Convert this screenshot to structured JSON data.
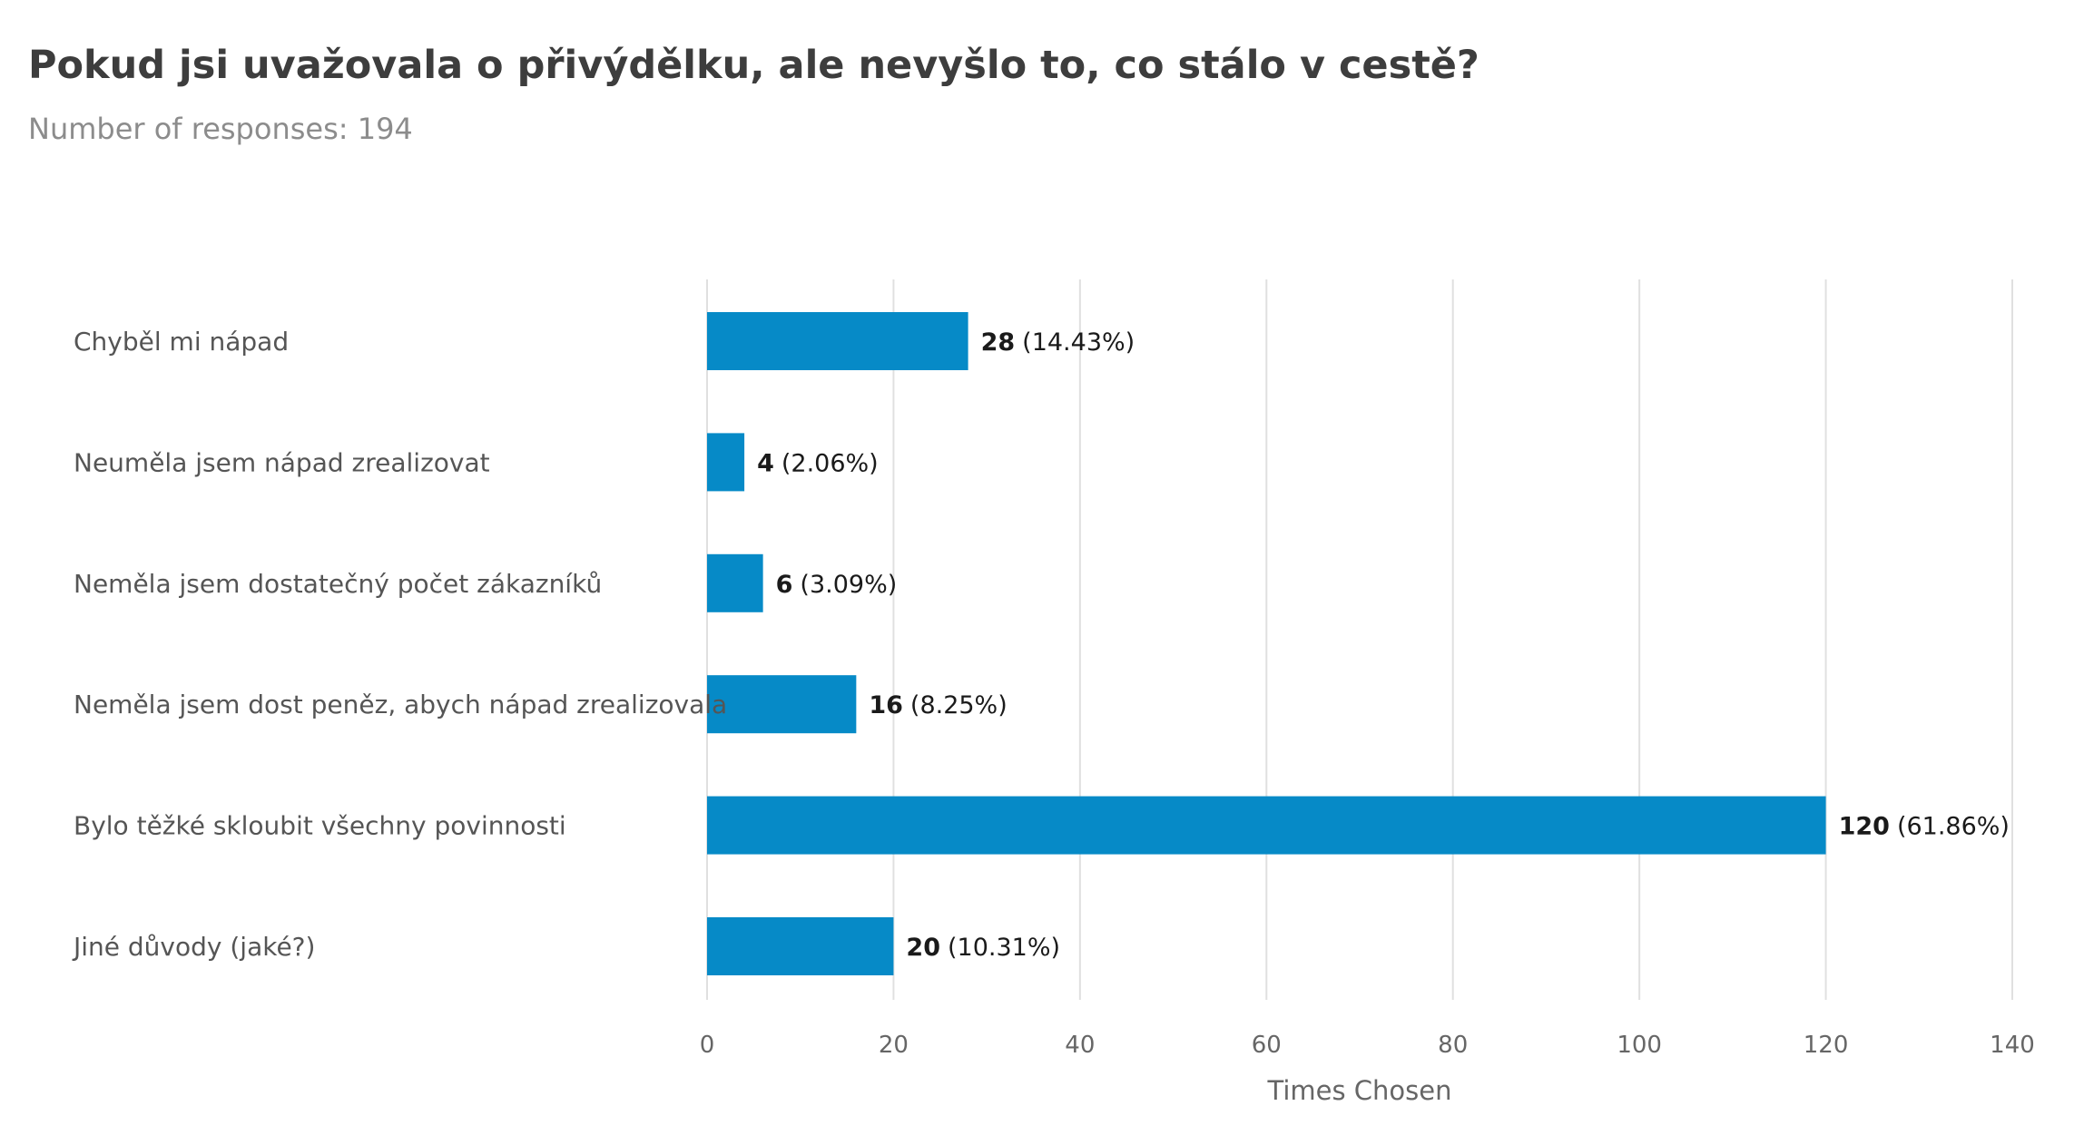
{
  "title": "Pokud jsi uvažovala o přivýdělku, ale nevyšlo to, co stálo v cestě?",
  "subtitle": "Number of responses: 194",
  "colors": {
    "bar": "#068ac7",
    "grid": "#e0e0e0",
    "axis_text": "#666666",
    "category_text": "#555555",
    "value_text": "#1a1a1a"
  },
  "chart_data": {
    "type": "bar",
    "orientation": "horizontal",
    "categories": [
      "Chyběl mi nápad",
      "Neuměla jsem nápad zrealizovat",
      "Neměla jsem dostatečný počet zákazníků",
      "Neměla jsem dost peněz, abych nápad zrealizovala",
      "Bylo těžké skloubit všechny povinnosti",
      "Jiné důvody (jaké?)"
    ],
    "values": [
      28,
      4,
      6,
      16,
      120,
      20
    ],
    "percentages": [
      "(14.43%)",
      "(2.06%)",
      "(3.09%)",
      "(8.25%)",
      "(61.86%)",
      "(10.31%)"
    ],
    "xlabel": "Times Chosen",
    "ylabel": "",
    "xlim": [
      0,
      140
    ],
    "xticks": [
      "0",
      "20",
      "40",
      "60",
      "80",
      "100",
      "120",
      "140"
    ],
    "grid": true
  }
}
